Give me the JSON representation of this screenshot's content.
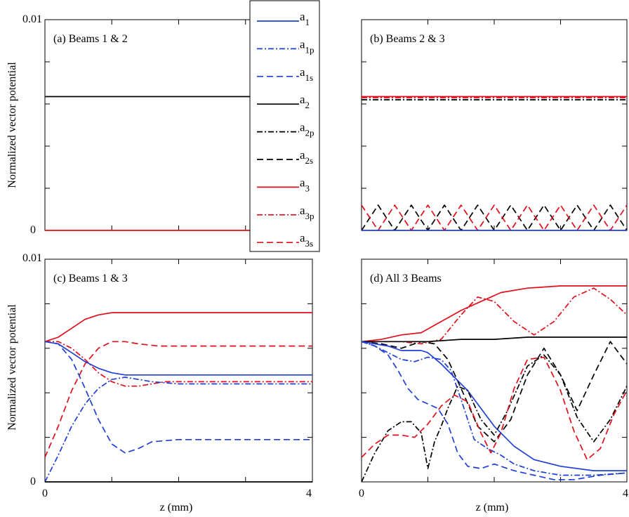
{
  "figure": {
    "ylabel": "Normalized vector potential",
    "xlabel": "z (mm)",
    "y_ticks": [
      "0",
      "0.01"
    ],
    "x_ticks": [
      "0",
      "4"
    ]
  },
  "legend": [
    {
      "base": "a",
      "sub": "1",
      "color": "#1f3fd6",
      "dash": "solid"
    },
    {
      "base": "a",
      "sub": "1p",
      "color": "#1f3fd6",
      "dash": "dashdot"
    },
    {
      "base": "a",
      "sub": "1s",
      "color": "#1f3fd6",
      "dash": "dash"
    },
    {
      "base": "a",
      "sub": "2",
      "color": "#000000",
      "dash": "solid"
    },
    {
      "base": "a",
      "sub": "2p",
      "color": "#000000",
      "dash": "dashdot"
    },
    {
      "base": "a",
      "sub": "2s",
      "color": "#000000",
      "dash": "dash"
    },
    {
      "base": "a",
      "sub": "3",
      "color": "#e0101a",
      "dash": "solid"
    },
    {
      "base": "a",
      "sub": "3p",
      "color": "#e0101a",
      "dash": "dashdot"
    },
    {
      "base": "a",
      "sub": "3s",
      "color": "#e0101a",
      "dash": "dash"
    }
  ],
  "chart_data": [
    {
      "type": "line",
      "title": "(a)  Beams 1 & 2",
      "xlim": [
        0,
        4
      ],
      "ylim": [
        0,
        0.01
      ],
      "ylabel": "Normalized vector potential",
      "series": [
        {
          "name": "a2",
          "color": "#000000",
          "dash": "solid",
          "x": [
            0,
            4
          ],
          "y": [
            0.00635,
            0.00635
          ]
        },
        {
          "name": "a3",
          "color": "#e0101a",
          "dash": "solid",
          "x": [
            0,
            4
          ],
          "y": [
            0.0,
            0.0
          ]
        }
      ]
    },
    {
      "type": "line",
      "title": "(b)  Beams 2 & 3",
      "xlim": [
        0,
        4
      ],
      "ylim": [
        0,
        0.01
      ],
      "series": [
        {
          "name": "a3",
          "color": "#e0101a",
          "dash": "solid",
          "x": [
            0,
            4
          ],
          "y": [
            0.00635,
            0.00635
          ]
        },
        {
          "name": "a3p",
          "color": "#e0101a",
          "dash": "dashdot",
          "x": [
            0,
            4
          ],
          "y": [
            0.0063,
            0.0063
          ]
        },
        {
          "name": "a2p",
          "color": "#000000",
          "dash": "dashdot",
          "x": [
            0,
            4
          ],
          "y": [
            0.0062,
            0.0062
          ]
        },
        {
          "name": "a2s",
          "color": "#000000",
          "dash": "dash",
          "x": [
            0,
            0.25,
            0.5,
            0.75,
            1.0,
            1.25,
            1.5,
            1.75,
            2.0,
            2.25,
            2.5,
            2.75,
            3.0,
            3.25,
            3.5,
            3.75,
            4.0
          ],
          "y": [
            0.0,
            0.0012,
            0.0,
            0.0012,
            0.0,
            0.0012,
            0.0,
            0.0012,
            0.0,
            0.0012,
            0.0,
            0.0012,
            0.0,
            0.0012,
            0.0,
            0.0012,
            0.0
          ]
        },
        {
          "name": "a3s",
          "color": "#e0101a",
          "dash": "dash",
          "x": [
            0,
            0.25,
            0.5,
            0.75,
            1.0,
            1.25,
            1.5,
            1.75,
            2.0,
            2.25,
            2.5,
            2.75,
            3.0,
            3.25,
            3.5,
            3.75,
            4.0
          ],
          "y": [
            0.0012,
            0.0,
            0.0012,
            0.0,
            0.0012,
            0.0,
            0.0012,
            0.0,
            0.0012,
            0.0,
            0.0012,
            0.0,
            0.0012,
            0.0,
            0.0012,
            0.0,
            0.0012
          ]
        },
        {
          "name": "a1",
          "color": "#1f3fd6",
          "dash": "solid",
          "x": [
            0,
            4
          ],
          "y": [
            0.0,
            0.0
          ]
        }
      ]
    },
    {
      "type": "line",
      "title": "(c)  Beams 1 & 3",
      "xlim": [
        0,
        4
      ],
      "ylim": [
        0,
        0.01
      ],
      "xlabel": "z (mm)",
      "ylabel": "Normalized vector potential",
      "series": [
        {
          "name": "a3",
          "color": "#e0101a",
          "dash": "solid",
          "x": [
            0,
            0.2,
            0.4,
            0.6,
            0.8,
            1.0,
            1.2,
            1.5,
            2.0,
            3.0,
            4.0
          ],
          "y": [
            0.0063,
            0.0065,
            0.0069,
            0.0073,
            0.0075,
            0.0076,
            0.0076,
            0.0076,
            0.0076,
            0.0076,
            0.0076
          ]
        },
        {
          "name": "a3s",
          "color": "#e0101a",
          "dash": "dash",
          "x": [
            0,
            0.2,
            0.4,
            0.6,
            0.8,
            1.0,
            1.2,
            1.4,
            1.7,
            2.0,
            3.0,
            4.0
          ],
          "y": [
            0.0011,
            0.0025,
            0.0041,
            0.0053,
            0.006,
            0.0063,
            0.0063,
            0.0062,
            0.0061,
            0.0061,
            0.0061,
            0.0061
          ]
        },
        {
          "name": "a3p",
          "color": "#e0101a",
          "dash": "dashdot",
          "x": [
            0,
            0.2,
            0.4,
            0.6,
            0.8,
            1.0,
            1.2,
            1.4,
            1.6,
            1.8,
            2.0,
            3.0,
            4.0
          ],
          "y": [
            0.0063,
            0.0063,
            0.006,
            0.0055,
            0.0049,
            0.0045,
            0.0043,
            0.0043,
            0.0044,
            0.0045,
            0.0045,
            0.0045,
            0.0045
          ]
        },
        {
          "name": "a1",
          "color": "#1f3fd6",
          "dash": "solid",
          "x": [
            0,
            0.2,
            0.4,
            0.6,
            0.8,
            1.0,
            1.2,
            1.5,
            2.0,
            3.0,
            4.0
          ],
          "y": [
            0.0063,
            0.0062,
            0.0058,
            0.0054,
            0.0051,
            0.0049,
            0.0048,
            0.0048,
            0.0048,
            0.0048,
            0.0048
          ]
        },
        {
          "name": "a1p",
          "color": "#1f3fd6",
          "dash": "dashdot",
          "x": [
            0,
            0.2,
            0.4,
            0.6,
            0.8,
            1.0,
            1.2,
            1.4,
            1.6,
            2.0,
            3.0,
            4.0
          ],
          "y": [
            0.0,
            0.0012,
            0.0025,
            0.0035,
            0.0042,
            0.0046,
            0.0047,
            0.0046,
            0.0045,
            0.0044,
            0.0044,
            0.0044
          ]
        },
        {
          "name": "a1s",
          "color": "#1f3fd6",
          "dash": "dash",
          "x": [
            0,
            0.2,
            0.4,
            0.6,
            0.8,
            1.0,
            1.2,
            1.4,
            1.6,
            2.0,
            3.0,
            4.0
          ],
          "y": [
            0.0063,
            0.0062,
            0.0055,
            0.0042,
            0.0028,
            0.0017,
            0.0013,
            0.0015,
            0.0018,
            0.0019,
            0.0019,
            0.0019
          ]
        },
        {
          "name": "a2",
          "color": "#000000",
          "dash": "solid",
          "x": [
            0,
            4
          ],
          "y": [
            0.0,
            0.0
          ]
        }
      ]
    },
    {
      "type": "line",
      "title": "(d)  All 3 Beams",
      "xlim": [
        0,
        4
      ],
      "ylim": [
        0,
        0.01
      ],
      "xlabel": "z (mm)",
      "series": [
        {
          "name": "a3",
          "color": "#e0101a",
          "dash": "solid",
          "x": [
            0,
            0.3,
            0.6,
            0.9,
            1.2,
            1.5,
            1.8,
            2.1,
            2.5,
            3.0,
            3.5,
            4.0
          ],
          "y": [
            0.0063,
            0.0064,
            0.0066,
            0.0067,
            0.0072,
            0.0077,
            0.0081,
            0.0085,
            0.0087,
            0.0088,
            0.0088,
            0.0088
          ]
        },
        {
          "name": "a3p",
          "color": "#e0101a",
          "dash": "dashdot",
          "x": [
            0,
            0.3,
            0.6,
            0.9,
            1.2,
            1.5,
            1.75,
            2.0,
            2.3,
            2.6,
            2.9,
            3.2,
            3.5,
            3.75,
            4.0
          ],
          "y": [
            0.0063,
            0.0063,
            0.0063,
            0.0062,
            0.0064,
            0.0075,
            0.0083,
            0.0081,
            0.0072,
            0.0066,
            0.0072,
            0.0083,
            0.0087,
            0.0082,
            0.0075
          ]
        },
        {
          "name": "a2",
          "color": "#000000",
          "dash": "solid",
          "x": [
            0,
            0.5,
            1.0,
            1.5,
            2.0,
            2.5,
            3.0,
            3.5,
            4.0
          ],
          "y": [
            0.0063,
            0.0063,
            0.0063,
            0.0064,
            0.0064,
            0.0065,
            0.0065,
            0.0065,
            0.0065
          ]
        },
        {
          "name": "a2s",
          "color": "#000000",
          "dash": "dash",
          "x": [
            0,
            0.3,
            0.6,
            0.9,
            1.1,
            1.3,
            1.5,
            1.75,
            2.0,
            2.25,
            2.5,
            2.75,
            3.0,
            3.25,
            3.5,
            3.75,
            4.0
          ],
          "y": [
            0.0063,
            0.0062,
            0.006,
            0.0063,
            0.0062,
            0.0055,
            0.0042,
            0.0025,
            0.0018,
            0.0028,
            0.0048,
            0.006,
            0.0048,
            0.0032,
            0.0048,
            0.0063,
            0.0053
          ]
        },
        {
          "name": "a1",
          "color": "#1f3fd6",
          "dash": "solid",
          "x": [
            0,
            0.2,
            0.4,
            0.6,
            0.8,
            0.9,
            1.0,
            1.2,
            1.4,
            1.6,
            1.8,
            2.0,
            2.3,
            2.6,
            3.0,
            3.5,
            4.0
          ],
          "y": [
            0.0063,
            0.0062,
            0.0061,
            0.0059,
            0.0059,
            0.0059,
            0.0058,
            0.0053,
            0.0047,
            0.0041,
            0.0033,
            0.0025,
            0.0016,
            0.001,
            0.0007,
            0.0005,
            0.0005
          ]
        },
        {
          "name": "a1p",
          "color": "#1f3fd6",
          "dash": "dashdot",
          "x": [
            0,
            0.2,
            0.4,
            0.6,
            0.8,
            1.0,
            1.2,
            1.35,
            1.5,
            1.7,
            1.9,
            2.1,
            2.3,
            2.6,
            3.0,
            3.5,
            4.0
          ],
          "y": [
            0.0063,
            0.0061,
            0.0058,
            0.0055,
            0.0054,
            0.0056,
            0.0055,
            0.005,
            0.0037,
            0.0019,
            0.0015,
            0.0012,
            0.0008,
            0.0005,
            0.0003,
            0.0003,
            0.0004
          ]
        },
        {
          "name": "a1s",
          "color": "#1f3fd6",
          "dash": "dash",
          "x": [
            0,
            0.2,
            0.4,
            0.55,
            0.7,
            0.85,
            1.0,
            1.15,
            1.3,
            1.45,
            1.6,
            1.8,
            2.0,
            2.3,
            2.6,
            2.9,
            3.2,
            3.6,
            4.0
          ],
          "y": [
            0.0063,
            0.0061,
            0.0057,
            0.005,
            0.0042,
            0.0037,
            0.0035,
            0.0033,
            0.0026,
            0.0013,
            0.0007,
            0.0006,
            0.0008,
            0.0005,
            0.0003,
            0.0001,
            0.0001,
            0.0003,
            0.0004
          ]
        },
        {
          "name": "a2p",
          "color": "#000000",
          "dash": "dashdot",
          "x": [
            0,
            0.2,
            0.4,
            0.6,
            0.75,
            0.9,
            1.0,
            1.1,
            1.2,
            1.3,
            1.45,
            1.6,
            1.8,
            2.0,
            2.2,
            2.5,
            2.75,
            3.0,
            3.25,
            3.5,
            3.75,
            4.0
          ],
          "y": [
            0.0,
            0.0013,
            0.0023,
            0.0027,
            0.0027,
            0.0022,
            0.0006,
            0.0018,
            0.0025,
            0.0033,
            0.0043,
            0.0041,
            0.0028,
            0.0021,
            0.0032,
            0.0052,
            0.0057,
            0.0048,
            0.0029,
            0.0018,
            0.0028,
            0.0043
          ]
        },
        {
          "name": "a3s",
          "color": "#e0101a",
          "dash": "dash",
          "x": [
            0,
            0.2,
            0.4,
            0.6,
            0.8,
            1.0,
            1.2,
            1.4,
            1.6,
            1.8,
            1.95,
            2.1,
            2.3,
            2.5,
            2.75,
            3.0,
            3.2,
            3.4,
            3.6,
            3.8,
            4.0
          ],
          "y": [
            0.0011,
            0.0017,
            0.0021,
            0.0021,
            0.002,
            0.0026,
            0.0034,
            0.0039,
            0.0036,
            0.0022,
            0.0013,
            0.0022,
            0.0042,
            0.0055,
            0.0056,
            0.0041,
            0.0023,
            0.001,
            0.0015,
            0.003,
            0.0041
          ]
        }
      ]
    }
  ]
}
